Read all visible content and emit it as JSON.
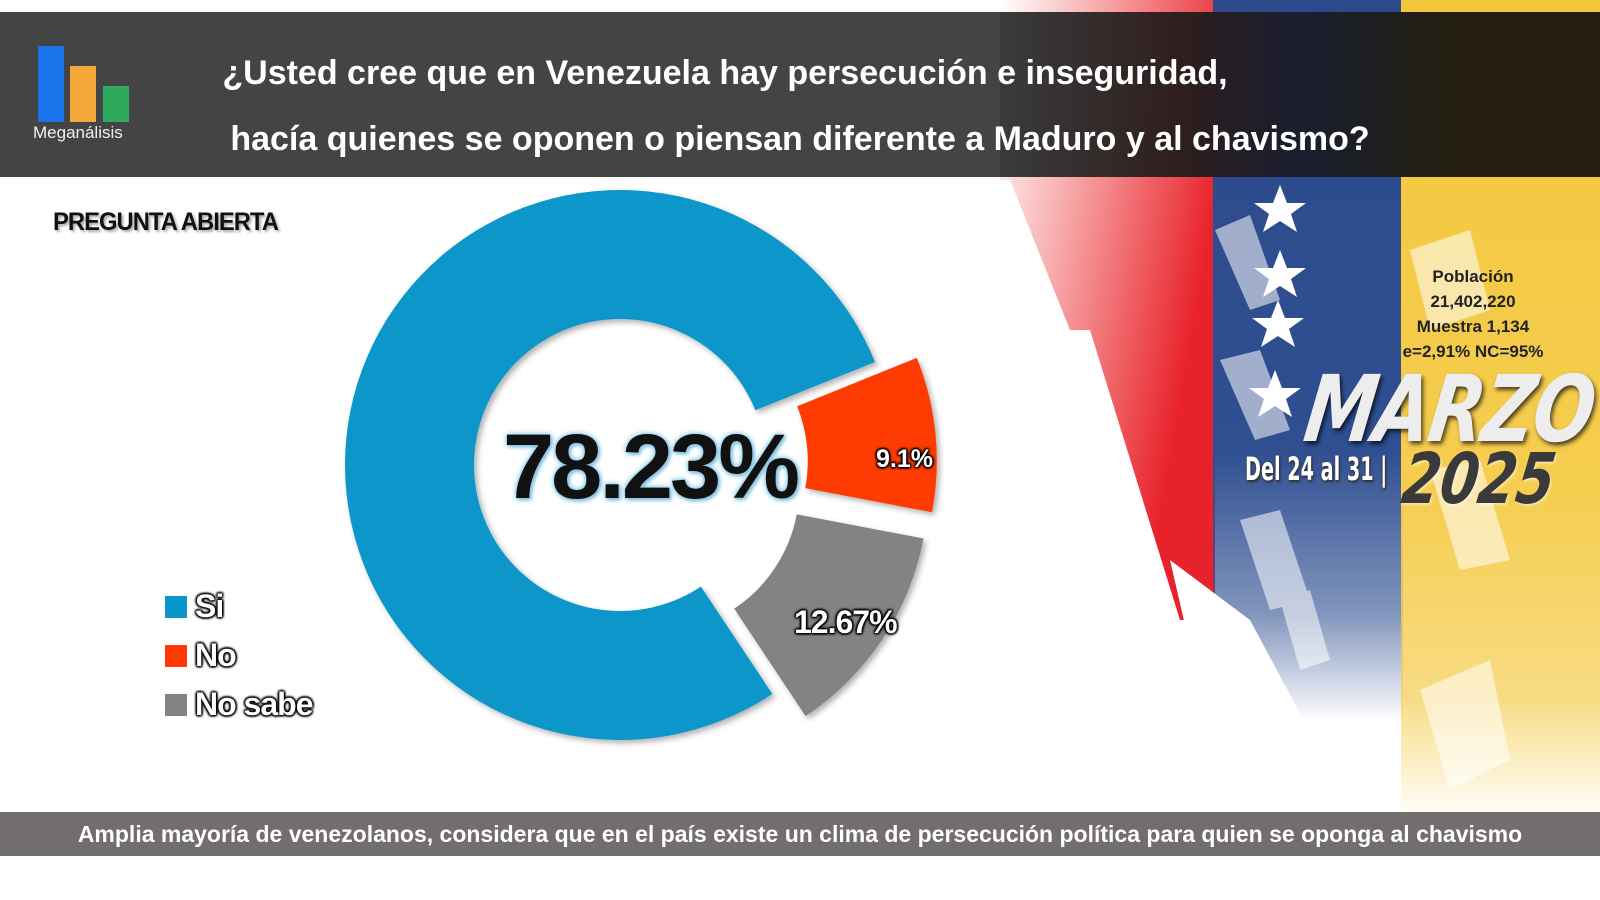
{
  "header": {
    "logo_text": "Meganálisis",
    "title_line1": "¿Usted cree que en Venezuela hay persecución e inseguridad,",
    "title_line2": "hacía quienes se oponen o piensan diferente a Maduro y al chavismo?"
  },
  "open_question_label": "PREGUNTA ABIERTA",
  "survey_info": {
    "population_label": "Población",
    "population_value": "21,402,220",
    "sample": "Muestra 1,134",
    "error_confidence": "e=2,91%  NC=95%"
  },
  "period": {
    "month": "MARZO",
    "dates": "Del 24 al 31 |",
    "year": "2025"
  },
  "colors": {
    "si": "#0b96c9",
    "no": "#fe3a00",
    "no_sabe": "#838383",
    "logo_blue": "#1a73e8",
    "logo_orange": "#f4a93a",
    "logo_green": "#2eaa5c"
  },
  "chart_data": {
    "type": "pie",
    "variant": "donut",
    "title": "¿Usted cree que en Venezuela hay persecución e inseguridad, hacía quienes se oponen o piensan diferente a Maduro y al chavismo?",
    "categories": [
      "Si",
      "No",
      "No sabe"
    ],
    "values": [
      78.23,
      9.1,
      12.67
    ],
    "labels": [
      "78.23%",
      "9.1%",
      "12.67%"
    ],
    "unit": "%",
    "legend_position": "left"
  },
  "footer": {
    "text": "Amplia mayoría de venezolanos, considera que en el país existe un clima de persecución política para quien se oponga al chavismo"
  }
}
